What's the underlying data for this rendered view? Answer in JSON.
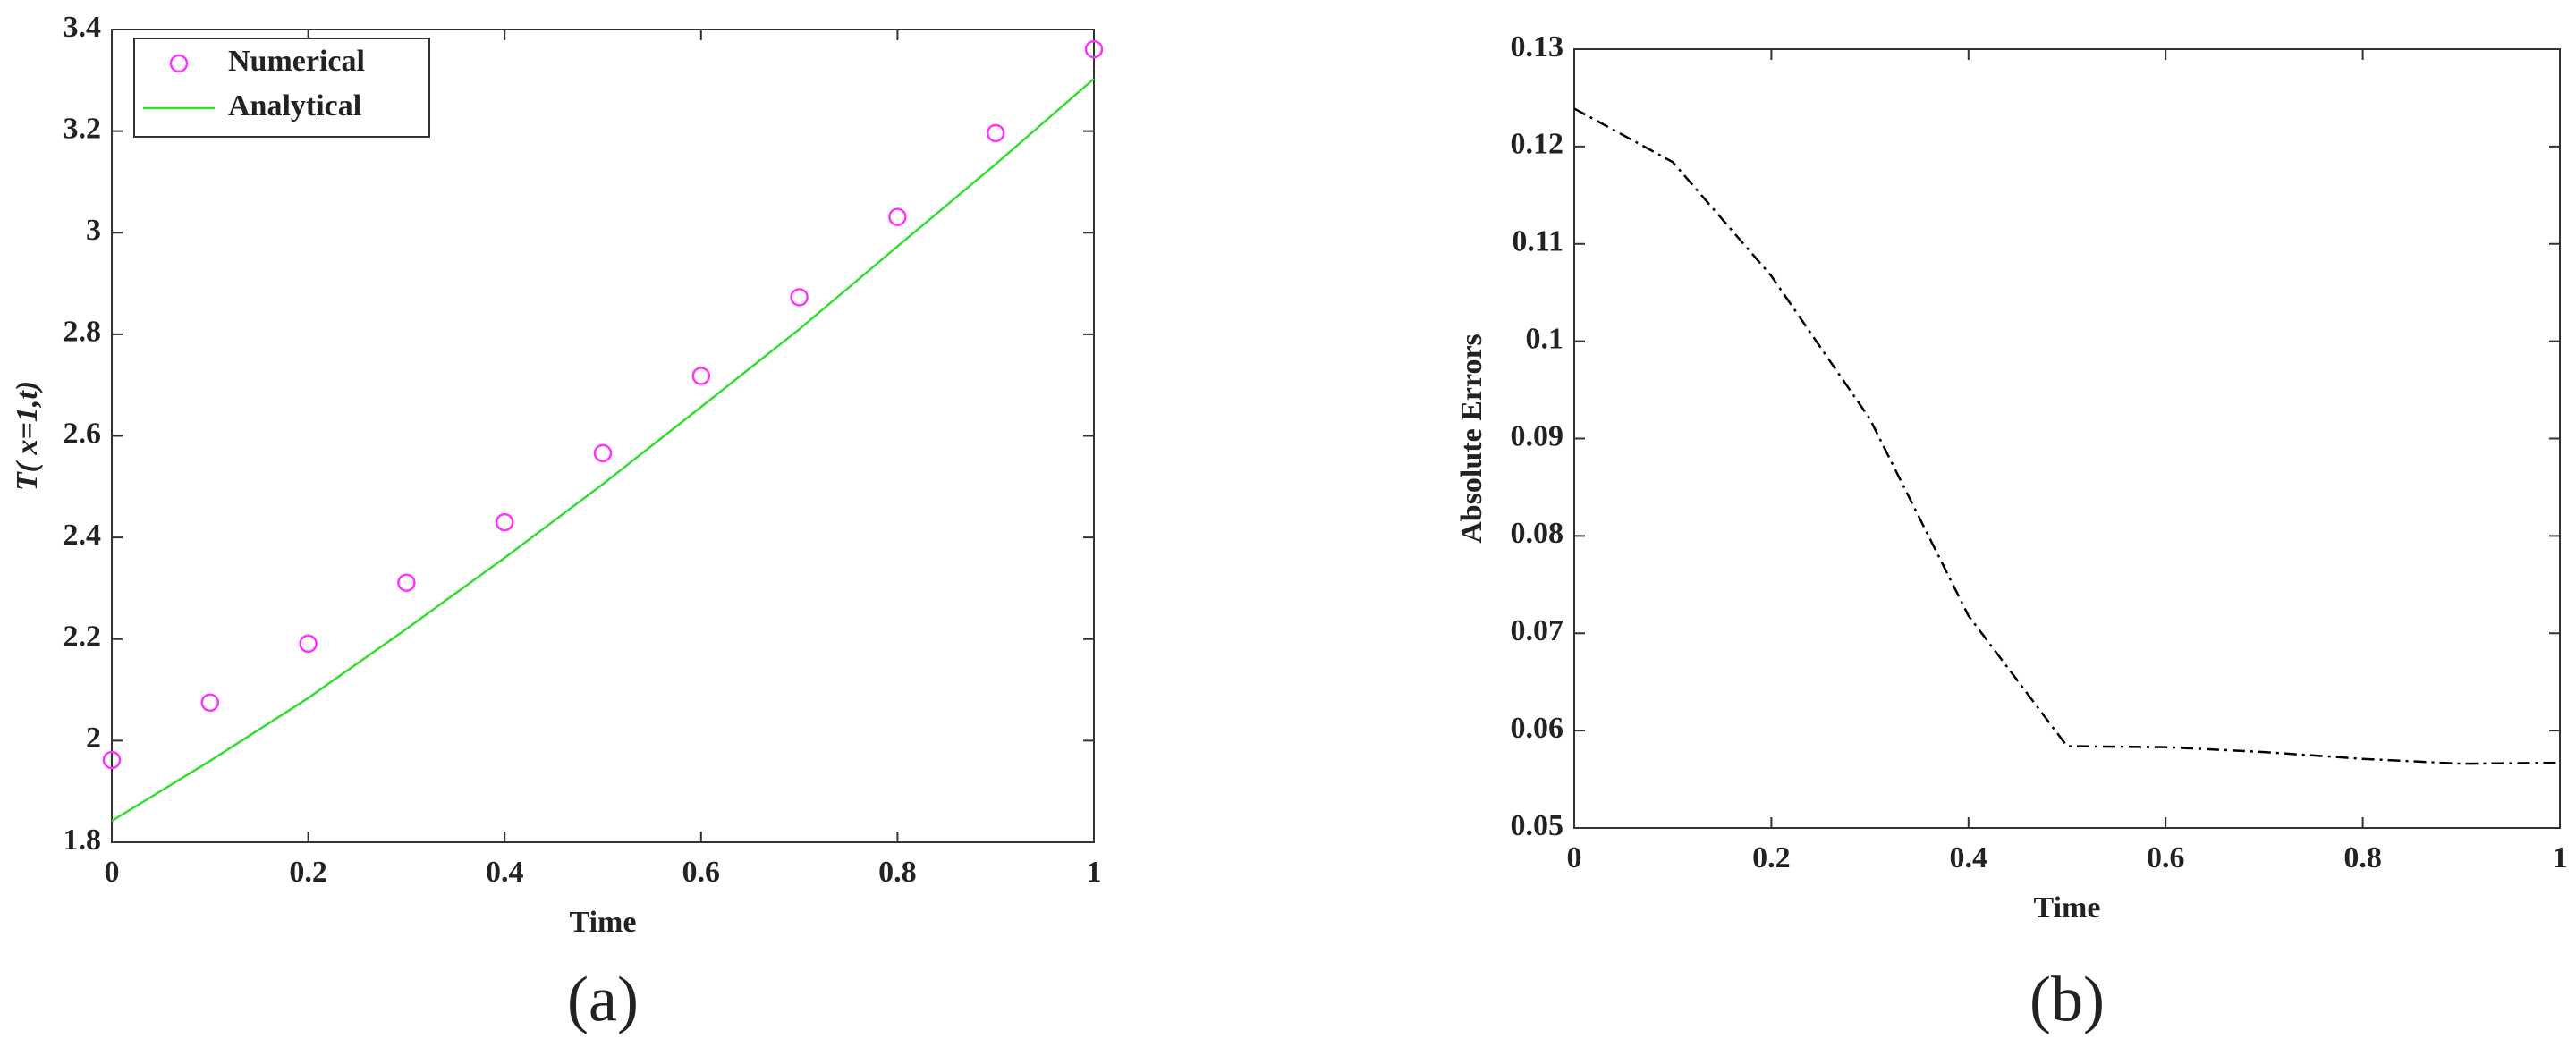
{
  "chart_data": [
    {
      "type": "line",
      "caption": "(a)",
      "xlabel": "Time",
      "ylabel": "T( x=1,t)",
      "x": [
        0,
        0.1,
        0.2,
        0.3,
        0.4,
        0.5,
        0.6,
        0.7,
        0.8,
        0.9,
        1
      ],
      "series": [
        {
          "name": "Numerical",
          "color": "#ff33ff",
          "style": "markers",
          "values": [
            1.962,
            2.075,
            2.191,
            2.311,
            2.43,
            2.566,
            2.718,
            2.873,
            3.031,
            3.196,
            3.361
          ]
        },
        {
          "name": "Analytical",
          "color": "#33dd33",
          "style": "line",
          "values": [
            1.842,
            1.96,
            2.084,
            2.22,
            2.36,
            2.505,
            2.657,
            2.81,
            2.973,
            3.135,
            3.303
          ]
        }
      ],
      "xlim": [
        0,
        1
      ],
      "xticks": [
        0,
        0.2,
        0.4,
        0.6,
        0.8,
        1
      ],
      "ylim": [
        1.8,
        3.4
      ],
      "yticks": [
        1.8,
        2,
        2.2,
        2.4,
        2.6,
        2.8,
        3,
        3.2,
        3.4
      ],
      "legend": "upper-left"
    },
    {
      "type": "line",
      "caption": "(b)",
      "xlabel": "Time",
      "ylabel": "Absolute Errors",
      "x": [
        0,
        0.1,
        0.2,
        0.3,
        0.4,
        0.5,
        0.6,
        0.7,
        0.8,
        0.9,
        1
      ],
      "series": [
        {
          "color": "#000000",
          "style": "dashdot",
          "values": [
            0.1239,
            0.1184,
            0.1067,
            0.092,
            0.0718,
            0.0584,
            0.0583,
            0.0578,
            0.0571,
            0.0566,
            0.0567
          ]
        }
      ],
      "xlim": [
        0,
        1
      ],
      "xticks": [
        0,
        0.2,
        0.4,
        0.6,
        0.8,
        1
      ],
      "ylim": [
        0.05,
        0.13
      ],
      "yticks": [
        0.05,
        0.06,
        0.07,
        0.08,
        0.09,
        0.1,
        0.11,
        0.12,
        0.13
      ]
    }
  ]
}
